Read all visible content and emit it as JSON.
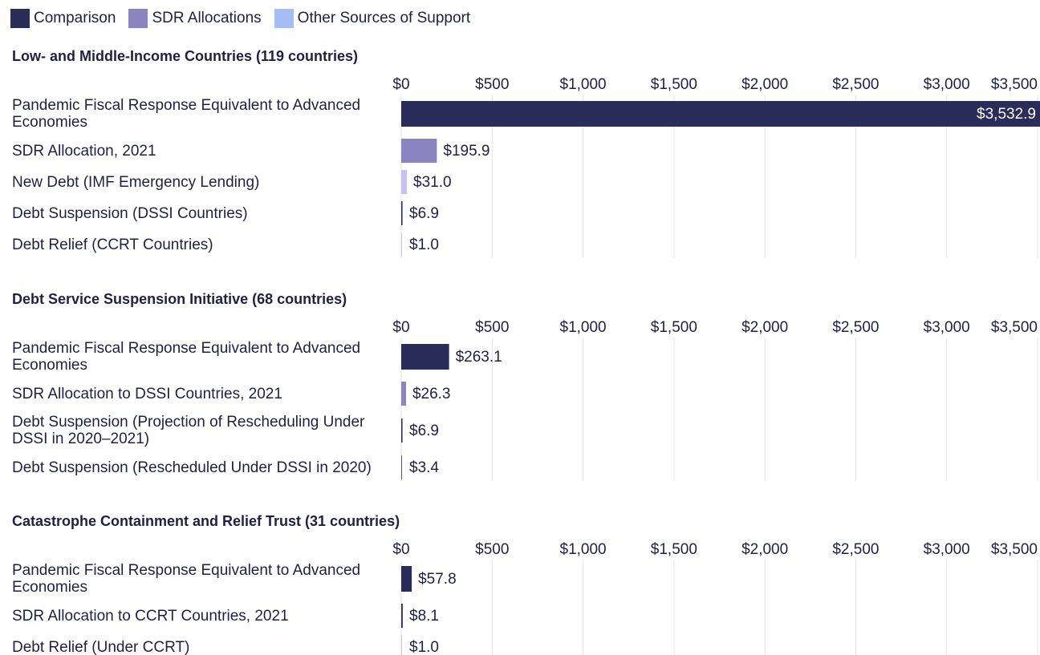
{
  "legend": [
    {
      "name": "Comparison",
      "color": "#2a2c5a"
    },
    {
      "name": "SDR Allocations",
      "color": "#8a84c0"
    },
    {
      "name": "Other Sources of Support",
      "color": "#a5bdf6"
    }
  ],
  "chart_data": [
    {
      "type": "bar",
      "title": "Low- and Middle-Income Countries (119 countries)",
      "categories": [
        "Pandemic Fiscal Response Equivalent to Advanced Economies",
        "SDR Allocation, 2021",
        "New Debt (IMF Emergency Lending)",
        "Debt Suspension (DSSI Countries)",
        "Debt Relief (CCRT Countries)"
      ],
      "values": [
        3532.9,
        195.9,
        31.0,
        6.9,
        1.0
      ],
      "value_labels": [
        "$3,532.9",
        "$195.9",
        "$31.0",
        "$6.9",
        "$1.0"
      ],
      "colors": [
        "#2a2c5a",
        "#8a84c0",
        "#c7c3ee",
        "#2a2c5a",
        "#2a2c5a"
      ],
      "xlim": [
        0,
        3500
      ],
      "xticks": [
        {
          "value": 0,
          "label": "$0"
        },
        {
          "value": 500,
          "label": "$500"
        },
        {
          "value": 1000,
          "label": "$1,000"
        },
        {
          "value": 1500,
          "label": "$1,500"
        },
        {
          "value": 2000,
          "label": "$2,000"
        },
        {
          "value": 2500,
          "label": "$2,500"
        },
        {
          "value": 3000,
          "label": "$3,000"
        },
        {
          "value": 3500,
          "label": "$3,500"
        }
      ],
      "grid": true
    },
    {
      "type": "bar",
      "title": "Debt Service Suspension Initiative (68 countries)",
      "categories": [
        "Pandemic Fiscal Response Equivalent to Advanced Economies",
        "SDR Allocation to DSSI Countries, 2021",
        "Debt Suspension (Projection of Rescheduling Under DSSI in 2020–2021)",
        "Debt Suspension (Rescheduled Under DSSI in 2020)"
      ],
      "values": [
        263.1,
        26.3,
        6.9,
        3.4
      ],
      "value_labels": [
        "$263.1",
        "$26.3",
        "$6.9",
        "$3.4"
      ],
      "colors": [
        "#2a2c5a",
        "#8a84c0",
        "#2a2c5a",
        "#2a2c5a"
      ],
      "xlim": [
        0,
        3500
      ],
      "xticks": [
        {
          "value": 0,
          "label": "$0"
        },
        {
          "value": 500,
          "label": "$500"
        },
        {
          "value": 1000,
          "label": "$1,000"
        },
        {
          "value": 1500,
          "label": "$1,500"
        },
        {
          "value": 2000,
          "label": "$2,000"
        },
        {
          "value": 2500,
          "label": "$2,500"
        },
        {
          "value": 3000,
          "label": "$3,000"
        },
        {
          "value": 3500,
          "label": "$3,500"
        }
      ],
      "grid": true
    },
    {
      "type": "bar",
      "title": "Catastrophe Containment and Relief Trust (31 countries)",
      "categories": [
        "Pandemic Fiscal Response Equivalent to Advanced Economies",
        "SDR Allocation to CCRT Countries, 2021",
        "Debt Relief (Under CCRT)"
      ],
      "values": [
        57.8,
        8.1,
        1.0
      ],
      "value_labels": [
        "$57.8",
        "$8.1",
        "$1.0"
      ],
      "colors": [
        "#2a2c5a",
        "#2a2c5a",
        "#2a2c5a"
      ],
      "xlim": [
        0,
        3500
      ],
      "xticks": [
        {
          "value": 0,
          "label": "$0"
        },
        {
          "value": 500,
          "label": "$500"
        },
        {
          "value": 1000,
          "label": "$1,000"
        },
        {
          "value": 1500,
          "label": "$1,500"
        },
        {
          "value": 2000,
          "label": "$2,000"
        },
        {
          "value": 2500,
          "label": "$2,500"
        },
        {
          "value": 3000,
          "label": "$3,000"
        },
        {
          "value": 3500,
          "label": "$3,500"
        }
      ],
      "grid": true
    }
  ]
}
